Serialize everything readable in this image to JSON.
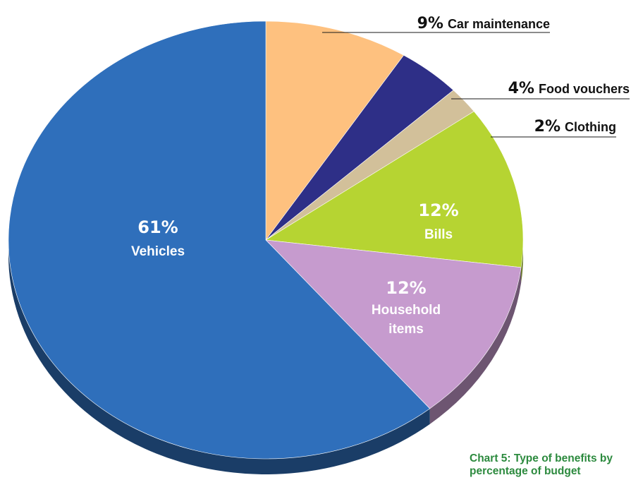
{
  "chart_data": {
    "type": "pie",
    "title": "",
    "caption_lines": [
      "Chart 5: Type of benefits by",
      "percentage of budget"
    ],
    "slices": [
      {
        "label": "Car maintenance",
        "value": 9,
        "pct_text": "9%",
        "color": "#fec17f",
        "label_display": "outside"
      },
      {
        "label": "Food vouchers",
        "value": 4,
        "pct_text": "4%",
        "color": "#2e2f87",
        "label_display": "outside"
      },
      {
        "label": "Clothing",
        "value": 2,
        "pct_text": "2%",
        "color": "#d2c09a",
        "label_display": "outside"
      },
      {
        "label": "Bills",
        "value": 12,
        "pct_text": "12%",
        "color": "#b6d432",
        "label_lines": [
          "Bills"
        ],
        "label_display": "inside"
      },
      {
        "label": "Household items",
        "value": 12,
        "pct_text": "12%",
        "color": "#c69bce",
        "label_lines": [
          "Household",
          "items"
        ],
        "label_display": "inside"
      },
      {
        "label": "Vehicles",
        "value": 61,
        "pct_text": "61%",
        "color": "#2f6fbb",
        "label_lines": [
          "Vehicles"
        ],
        "label_display": "inside"
      }
    ]
  }
}
